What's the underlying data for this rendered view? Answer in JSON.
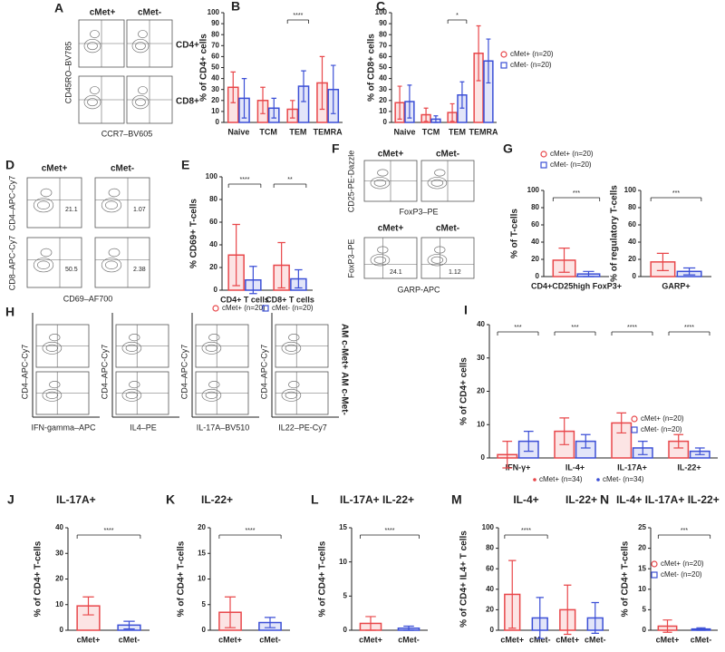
{
  "chart_data": [
    {
      "type": "bar",
      "panel": "B",
      "y_label": "% of CD4+ cells",
      "categories": [
        "Naive",
        "TCM",
        "TEM",
        "TEMRA"
      ],
      "series": [
        {
          "color": "#e8474a",
          "values": [
            32,
            20,
            12,
            36
          ],
          "errors": [
            14,
            12,
            8,
            24
          ]
        },
        {
          "color": "#3b4fd6",
          "values": [
            22,
            13,
            33,
            30
          ],
          "errors": [
            18,
            9,
            14,
            22
          ]
        }
      ],
      "ylim": [
        0,
        100
      ],
      "yticks": [
        0,
        10,
        20,
        30,
        40,
        50,
        60,
        70,
        80,
        90,
        100
      ],
      "annotations": [
        {
          "text": "****",
          "span": [
            2,
            2
          ]
        }
      ]
    },
    {
      "type": "bar",
      "panel": "C",
      "y_label": "% of CD8+ cells",
      "categories": [
        "Naive",
        "TCM",
        "TEM",
        "TEMRA"
      ],
      "series": [
        {
          "name": "cMet+ (n=20)",
          "color": "#e8474a",
          "values": [
            18,
            7,
            9,
            63
          ],
          "errors": [
            15,
            6,
            8,
            25
          ]
        },
        {
          "name": "cMet- (n=20)",
          "color": "#3b4fd6",
          "values": [
            19,
            3,
            25,
            56
          ],
          "errors": [
            15,
            3,
            12,
            20
          ]
        }
      ],
      "ylim": [
        0,
        100
      ],
      "yticks": [
        0,
        10,
        20,
        30,
        40,
        50,
        60,
        70,
        80,
        90,
        100
      ],
      "annotations": [
        {
          "text": "*",
          "span": [
            2,
            2
          ]
        }
      ]
    },
    {
      "type": "bar",
      "panel": "E",
      "y_label": "% CD69+ T-cells",
      "categories": [
        "CD4+ T cells",
        "CD8+ T cells"
      ],
      "series": [
        {
          "name": "cMet+ (n=20)",
          "color": "#e8474a",
          "values": [
            31,
            22
          ],
          "errors": [
            27,
            20
          ]
        },
        {
          "name": "cMet- (n=20)",
          "color": "#3b4fd6",
          "values": [
            9,
            10
          ],
          "errors": [
            12,
            8
          ]
        }
      ],
      "ylim": [
        0,
        100
      ],
      "yticks": [
        0,
        20,
        40,
        60,
        80,
        100
      ],
      "annotations": [
        {
          "text": "****",
          "span": [
            0,
            0
          ]
        },
        {
          "text": "**",
          "span": [
            1,
            1
          ]
        }
      ]
    },
    {
      "type": "bar",
      "panel": "G",
      "y_label": "% of T-cells",
      "categories": [
        "CD4+CD25high FoxP3+"
      ],
      "series": [
        {
          "name": "cMet+ (n=20)",
          "color": "#e8474a",
          "values": [
            19
          ],
          "errors": [
            14
          ]
        },
        {
          "name": "cMet- (n=20)",
          "color": "#3b4fd6",
          "values": [
            3
          ],
          "errors": [
            3
          ]
        }
      ],
      "ylim": [
        0,
        100
      ],
      "yticks": [
        0,
        20,
        40,
        60,
        80,
        100
      ],
      "annotations": [
        {
          "text": "***",
          "span": [
            0,
            0
          ]
        }
      ]
    },
    {
      "type": "bar",
      "y_label": "% of regulatory T-cells",
      "categories": [
        "GARP+"
      ],
      "series": [
        {
          "color": "#e8474a",
          "values": [
            17
          ],
          "errors": [
            10
          ]
        },
        {
          "color": "#3b4fd6",
          "values": [
            6
          ],
          "errors": [
            4
          ]
        }
      ],
      "ylim": [
        0,
        100
      ],
      "yticks": [
        0,
        20,
        40,
        60,
        80,
        100
      ],
      "annotations": [
        {
          "text": "***",
          "span": [
            0,
            0
          ]
        }
      ]
    },
    {
      "type": "bar",
      "panel": "I",
      "y_label": "% of CD4+ cells",
      "categories": [
        "IFN-γ+",
        "IL-4+",
        "IL-17A+",
        "IL-22+"
      ],
      "series": [
        {
          "name": "cMet+ (n=20)",
          "color": "#e8474a",
          "values": [
            1,
            8,
            10.5,
            5
          ],
          "errors": [
            4,
            4,
            3,
            2
          ]
        },
        {
          "name": "cMet- (n=20)",
          "color": "#3b4fd6",
          "values": [
            5,
            5,
            3,
            2
          ],
          "errors": [
            3,
            2,
            2,
            1
          ]
        }
      ],
      "extra_legend": [
        "cMet+ (n=34)",
        "cMet- (n=34)"
      ],
      "ylim": [
        0,
        40
      ],
      "yticks": [
        0,
        10,
        20,
        30,
        40
      ],
      "annotations": [
        {
          "text": "***",
          "span": [
            0,
            0
          ]
        },
        {
          "text": "***",
          "span": [
            1,
            1
          ]
        },
        {
          "text": "****",
          "span": [
            2,
            2
          ]
        },
        {
          "text": "****",
          "span": [
            3,
            3
          ]
        }
      ]
    },
    {
      "type": "bar",
      "panel": "J",
      "title": "IL-17A+",
      "y_label": "% of CD4+ T-cells",
      "categories": [
        "cMet+",
        "cMet-"
      ],
      "colors": [
        "#e8474a",
        "#3b4fd6"
      ],
      "values": [
        9.5,
        2
      ],
      "errors": [
        3.5,
        1.5
      ],
      "ylim": [
        0,
        40
      ],
      "yticks": [
        0,
        10,
        20,
        30,
        40
      ],
      "annotations": [
        {
          "text": "****",
          "span": [
            0,
            1
          ]
        }
      ]
    },
    {
      "type": "bar",
      "panel": "K",
      "title": "IL-22+",
      "y_label": "% of CD4+ T-cells",
      "categories": [
        "cMet+",
        "cMet-"
      ],
      "colors": [
        "#e8474a",
        "#3b4fd6"
      ],
      "values": [
        3.5,
        1.5
      ],
      "errors": [
        3,
        1
      ],
      "ylim": [
        0,
        20
      ],
      "yticks": [
        0,
        5,
        10,
        15,
        20
      ],
      "annotations": [
        {
          "text": "****",
          "span": [
            0,
            1
          ]
        }
      ]
    },
    {
      "type": "bar",
      "panel": "L",
      "title": "IL-17A+ IL-22+",
      "y_label": "% of CD4+ T-cells",
      "categories": [
        "cMet+",
        "cMet-"
      ],
      "colors": [
        "#e8474a",
        "#3b4fd6"
      ],
      "values": [
        1,
        0.3
      ],
      "errors": [
        1,
        0.3
      ],
      "ylim": [
        0,
        15
      ],
      "yticks": [
        0,
        5,
        10,
        15
      ],
      "annotations": [
        {
          "text": "****",
          "span": [
            0,
            1
          ]
        }
      ]
    },
    {
      "type": "bar",
      "panel": "M",
      "group_labels": [
        "IL-4+",
        "IL-22+"
      ],
      "y_label": "% of CD4+ IL4+ T cells",
      "categories": [
        "cMet+",
        "cMet-",
        "cMet+",
        "cMet-"
      ],
      "colors": [
        "#e8474a",
        "#3b4fd6",
        "#e8474a",
        "#3b4fd6"
      ],
      "values": [
        35,
        12,
        20,
        12
      ],
      "errors": [
        33,
        20,
        24,
        15
      ],
      "ylim": [
        0,
        100
      ],
      "yticks": [
        0,
        20,
        40,
        60,
        80,
        100
      ],
      "annotations": [
        {
          "text": "****",
          "span": [
            0,
            1
          ]
        }
      ]
    },
    {
      "type": "bar",
      "panel": "N",
      "title": "IL-4+ IL-17A+ IL-22+",
      "y_label": "% of CD4+ T-cells",
      "categories": [
        "cMet+",
        "cMet-"
      ],
      "colors": [
        "#e8474a",
        "#3b4fd6"
      ],
      "values": [
        1,
        0.3
      ],
      "errors": [
        1.5,
        0.3
      ],
      "legend": [
        "cMet+ (n=20)",
        "cMet- (n=20)"
      ],
      "ylim": [
        0,
        25
      ],
      "yticks": [
        0,
        5,
        10,
        15,
        20,
        25
      ],
      "annotations": [
        {
          "text": "***",
          "span": [
            0,
            1
          ]
        }
      ]
    }
  ],
  "flow": {
    "A": {
      "letter": "A",
      "columns": [
        "cMet+",
        "cMet-"
      ],
      "rows": [
        "CD4+",
        "CD8+"
      ],
      "y_label": "CD45RO–BV785",
      "x_label": "CCR7–BV605"
    },
    "D": {
      "letter": "D",
      "columns": [
        "cMet+",
        "cMet-"
      ],
      "y_labels": [
        "CD4–APC-Cy7",
        "CD8–APC-Cy7"
      ],
      "x_label": "CD69–AF700",
      "gates": [
        "21.1",
        "1.07",
        "50.5",
        "2.38"
      ]
    },
    "F": {
      "letter": "F",
      "top_columns": [
        "cMet+",
        "cMet-"
      ],
      "top_y": "CD25-PE-Dazzle",
      "top_x": "FoxP3–PE",
      "bottom_columns": [
        "cMet+",
        "cMet-"
      ],
      "bottom_y": "FoxP3–PE",
      "bottom_x": "GARP-APC",
      "gates": [
        "24.1",
        "1.12"
      ]
    },
    "H": {
      "letter": "H",
      "y_label": "CD4–APC-Cy7",
      "x_labels": [
        "IFN-gamma–APC",
        "IL4–PE",
        "IL-17A–BV510",
        "IL22–PE-Cy7"
      ],
      "rows": [
        "AM c-Met+",
        "AM c-Met-"
      ]
    }
  }
}
